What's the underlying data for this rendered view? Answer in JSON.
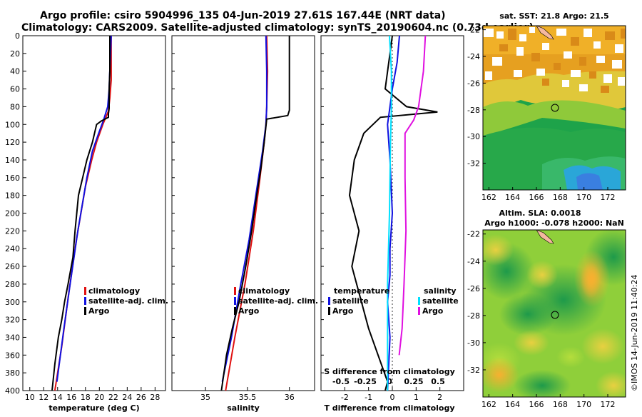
{
  "header": {
    "line1": "Argo profile: csiro 5904996_135 04-Jun-2019 27.61S 167.44E (NRT data)",
    "line2": "Climatology: CARS2009. Satellite-adjusted climatology: synTS_20190604.nc (0.73d earlier)"
  },
  "map1": {
    "title": "sat. SST: 21.8 Argo: 21.5"
  },
  "map2": {
    "title1": "Altim. SLA: 0.0018",
    "title2": "Argo h1000: -0.078 h2000: NaN"
  },
  "stamp": "©IMOS 14-Jun-2019 11:40:24",
  "colors": {
    "climatology": "#e01010",
    "satellite": "#1010e0",
    "argo": "#000000",
    "sat_diff": "#00e0ff",
    "clim_diff": "#e010e0"
  },
  "chart_data": [
    {
      "type": "line",
      "id": "temperature",
      "xlabel": "temperature (deg C)",
      "ylabel": "",
      "xlim": [
        9,
        29.5
      ],
      "ylim": [
        400,
        0
      ],
      "xticks": [
        10,
        12,
        14,
        16,
        18,
        20,
        22,
        24,
        26,
        28
      ],
      "yticks": [
        0,
        20,
        40,
        60,
        80,
        100,
        120,
        140,
        160,
        180,
        200,
        220,
        240,
        260,
        280,
        300,
        320,
        340,
        360,
        380,
        400
      ],
      "legend": [
        "climatology",
        "satellite-adj. clim.",
        "Argo"
      ],
      "series": [
        {
          "name": "climatology",
          "color": "#e01010",
          "x": [
            21.7,
            21.7,
            21.7,
            21.5,
            21.3,
            20.5,
            19.6,
            18.9,
            18.0,
            16.7,
            15.6,
            14.6,
            13.6
          ],
          "y": [
            0,
            20,
            50,
            70,
            85,
            100,
            120,
            140,
            170,
            230,
            290,
            350,
            400
          ]
        },
        {
          "name": "satellite-adj. clim.",
          "color": "#1010e0",
          "x": [
            21.7,
            21.6,
            21.4,
            21.2,
            20.6,
            19.9,
            19.0,
            18.2,
            16.9,
            15.8,
            14.9,
            13.9
          ],
          "y": [
            0,
            20,
            60,
            80,
            95,
            110,
            130,
            160,
            220,
            280,
            330,
            390
          ]
        },
        {
          "name": "Argo",
          "color": "#000000",
          "x": [
            21.5,
            21.5,
            21.4,
            21.4,
            21.3,
            21.3,
            20.3,
            19.6,
            19.0,
            18.2,
            17.6,
            17.0,
            16.5,
            16.2,
            15.5,
            15.0,
            14.6,
            14.1,
            13.6,
            13.2
          ],
          "y": [
            0,
            40,
            60,
            82,
            88,
            92,
            96,
            100,
            120,
            140,
            160,
            180,
            220,
            250,
            280,
            300,
            320,
            340,
            370,
            400
          ]
        }
      ]
    },
    {
      "type": "line",
      "id": "salinity",
      "xlabel": "salinity",
      "ylabel": "",
      "xlim": [
        34.6,
        36.3
      ],
      "ylim": [
        400,
        0
      ],
      "xticks": [
        35,
        35.5,
        36
      ],
      "xtick_labels": [
        "35",
        "35.5",
        "36"
      ],
      "legend": [
        "climatology",
        "satellite-adj. clim.",
        "Argo"
      ],
      "series": [
        {
          "name": "climatology",
          "color": "#e01010",
          "x": [
            35.73,
            35.74,
            35.73,
            35.72,
            35.7,
            35.65,
            35.57,
            35.47,
            35.35,
            35.24
          ],
          "y": [
            0,
            40,
            80,
            100,
            120,
            160,
            220,
            280,
            340,
            400
          ]
        },
        {
          "name": "satellite-adj. clim.",
          "color": "#1010e0",
          "x": [
            35.72,
            35.73,
            35.73,
            35.72,
            35.68,
            35.6,
            35.52,
            35.42,
            35.31,
            35.2
          ],
          "y": [
            0,
            40,
            80,
            100,
            130,
            180,
            230,
            280,
            340,
            390
          ]
        },
        {
          "name": "Argo",
          "color": "#000000",
          "x": [
            36.0,
            36.0,
            36.0,
            35.98,
            35.73,
            35.7,
            35.66,
            35.61,
            35.55,
            35.48,
            35.4,
            35.32,
            35.25,
            35.19
          ],
          "y": [
            0,
            60,
            84,
            90,
            94,
            120,
            150,
            180,
            220,
            260,
            300,
            330,
            360,
            400
          ]
        }
      ]
    },
    {
      "type": "line",
      "id": "difference",
      "xlabel": "T difference from climatology",
      "xlabel_top": "S difference from climatology",
      "xlim": [
        -3,
        3
      ],
      "ylim": [
        400,
        0
      ],
      "xticks": [
        -2,
        -1,
        0,
        1,
        2
      ],
      "sxticks": [
        -0.5,
        -0.25,
        0,
        0.25,
        0.5
      ],
      "sxtick_labels": [
        "-0.5",
        "-0.25",
        "0",
        "0.25",
        "0.5"
      ],
      "legend_left_title": "temperature",
      "legend_right_title": "salinity",
      "legend": [
        "satellite",
        "Argo",
        "satellite",
        "Argo"
      ],
      "series": [
        {
          "name": "T satellite",
          "color": "#1010e0",
          "x": [
            0.3,
            0.2,
            0.0,
            -0.1,
            -0.2,
            -0.1,
            0.0,
            -0.1,
            -0.1,
            -0.2,
            -0.1,
            -0.2
          ],
          "y": [
            0,
            30,
            60,
            80,
            100,
            140,
            200,
            240,
            270,
            300,
            340,
            400
          ]
        },
        {
          "name": "T Argo",
          "color": "#000000",
          "x": [
            0.0,
            -0.1,
            -0.3,
            0.6,
            1.9,
            -0.5,
            -1.2,
            -1.6,
            -1.8,
            -1.4,
            -1.7,
            -1.3,
            -1.0,
            -0.6,
            -0.2,
            -0.3
          ],
          "y": [
            0,
            20,
            60,
            80,
            86,
            92,
            110,
            140,
            180,
            220,
            260,
            300,
            330,
            360,
            390,
            400
          ]
        },
        {
          "name": "S satellite",
          "color": "#00e0ff",
          "x": [
            0.0,
            0.02,
            0.02,
            0.01,
            0.0,
            -0.02,
            -0.02,
            -0.02
          ],
          "y": [
            0,
            40,
            80,
            120,
            200,
            280,
            340,
            400
          ]
        },
        {
          "name": "S Argo",
          "color": "#e010e0",
          "x": [
            0.37,
            0.35,
            0.3,
            0.25,
            0.16,
            0.16,
            0.17,
            0.15,
            0.13,
            0.1
          ],
          "y": [
            0,
            40,
            80,
            95,
            110,
            160,
            220,
            280,
            330,
            360
          ]
        }
      ]
    },
    {
      "type": "heatmap",
      "id": "sst-map",
      "title": "sat. SST: 21.8 Argo: 21.5",
      "xlim": [
        161.5,
        173.5
      ],
      "ylim": [
        -34,
        -21.7
      ],
      "xticks": [
        162,
        164,
        166,
        168,
        170,
        172
      ],
      "yticks": [
        -22,
        -24,
        -26,
        -28,
        -30,
        -32
      ],
      "argo_position": [
        167.44,
        -27.61
      ]
    },
    {
      "type": "heatmap",
      "id": "sla-map",
      "title": "Altim. SLA: 0.0018",
      "xlim": [
        161.5,
        173.5
      ],
      "ylim": [
        -34,
        -21.7
      ],
      "xticks": [
        162,
        164,
        166,
        168,
        170,
        172
      ],
      "yticks": [
        -22,
        -24,
        -26,
        -28,
        -30,
        -32
      ],
      "argo_position": [
        167.44,
        -27.61
      ]
    }
  ]
}
